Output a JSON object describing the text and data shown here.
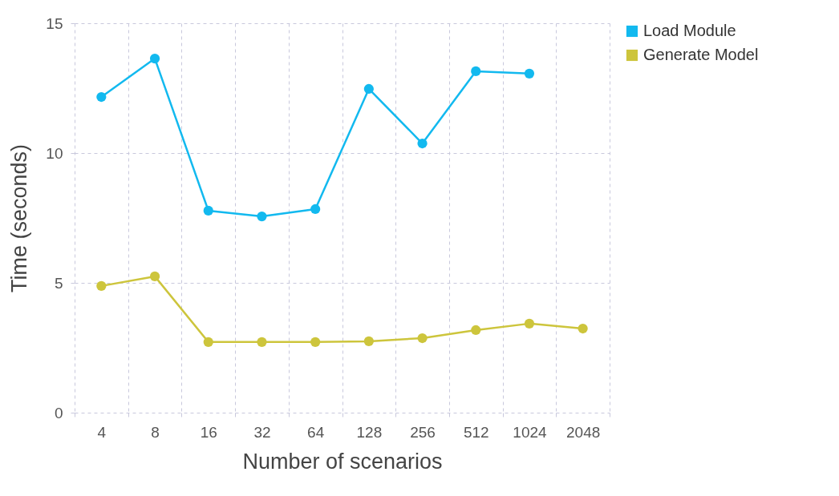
{
  "chart_data": {
    "type": "line",
    "xlabel": "Number of scenarios",
    "ylabel": "Time (seconds)",
    "categories": [
      "4",
      "8",
      "16",
      "32",
      "64",
      "128",
      "256",
      "512",
      "1024",
      "2048"
    ],
    "series": [
      {
        "name": "Load Module",
        "color": "#12b9ef",
        "values": [
          12.16,
          13.64,
          7.78,
          7.56,
          7.84,
          12.47,
          10.37,
          13.15,
          13.06,
          null
        ]
      },
      {
        "name": "Generate Model",
        "color": "#cdc53c",
        "values": [
          4.88,
          5.25,
          2.72,
          2.72,
          2.72,
          2.75,
          2.87,
          3.18,
          3.43,
          3.24
        ]
      }
    ],
    "ylim": [
      0,
      15
    ],
    "yticks": [
      0,
      5,
      10,
      15
    ],
    "grid": true,
    "legend": "right",
    "marker": "circle",
    "line_style": "solid"
  }
}
